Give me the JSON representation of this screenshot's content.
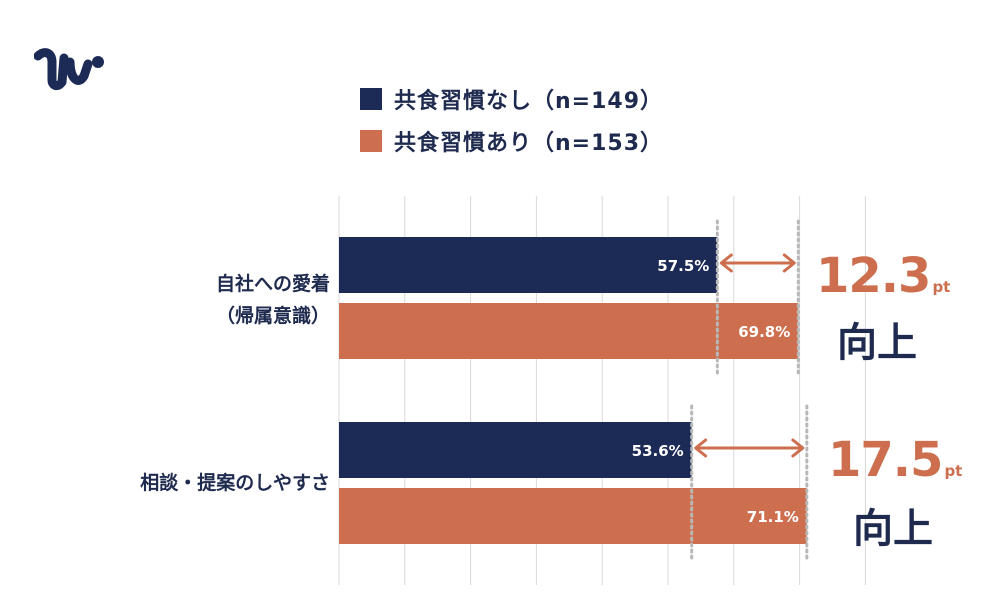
{
  "colors": {
    "series_no_habit": "#1c2a56",
    "series_habit": "#cd6f4f",
    "grid": "#d8d8d8",
    "text_dark": "#1f2a4f",
    "accent": "#cd6f4f"
  },
  "logo": {
    "icon": "brand-logo-mark"
  },
  "legend": [
    {
      "label": "共食習慣なし（n=149）",
      "color": "#1c2a56"
    },
    {
      "label": "共食習慣あり（n=153）",
      "color": "#cd6f4f"
    }
  ],
  "chart_data": {
    "type": "bar",
    "orientation": "horizontal",
    "categories": [
      "自社への愛着（帰属意識）",
      "相談・提案のしやすさ"
    ],
    "category_lines": [
      [
        "自社への愛着",
        "（帰属意識）"
      ],
      [
        "相談・提案のしやすさ"
      ]
    ],
    "series": [
      {
        "name": "共食習慣なし（n=149）",
        "values": [
          57.5,
          53.6
        ],
        "labels": [
          "57.5%",
          "53.6%"
        ]
      },
      {
        "name": "共食習慣あり（n=153）",
        "values": [
          69.8,
          71.1
        ],
        "labels": [
          "69.8%",
          "71.1%"
        ]
      }
    ],
    "xlim": [
      0,
      80
    ],
    "x_tick_step": 10,
    "grid": true,
    "legend_position": "top",
    "annotations": [
      {
        "value": "12.3",
        "unit": "pt",
        "text": "向上"
      },
      {
        "value": "17.5",
        "unit": "pt",
        "text": "向上"
      }
    ]
  }
}
